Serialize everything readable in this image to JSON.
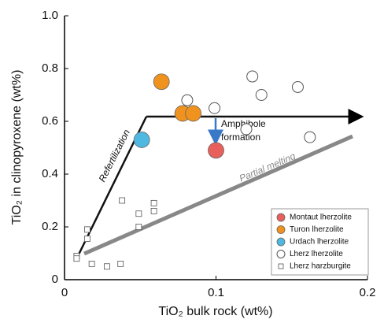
{
  "chart_data": {
    "type": "scatter",
    "x_label": "TiO₂ bulk rock (wt%)",
    "y_label": "TiO₂ in clinopyroxene (wt%)",
    "xlim": [
      0,
      0.2
    ],
    "xticks": [
      0,
      0.1,
      0.2
    ],
    "ylim": [
      0,
      1
    ],
    "yticks": [
      0,
      0.2,
      0.4,
      0.6,
      0.8,
      {
        "value": 1,
        "label": "1.0"
      }
    ],
    "legend_position": "lower right",
    "annotations": [
      "Refertilization",
      "Partial melting",
      "Amphibole",
      "formation"
    ],
    "series": [
      {
        "name": "Montaut lherzolite",
        "color": "#e8605c",
        "marker": "circle",
        "filled": true,
        "x": [
          0.1
        ],
        "values": [
          0.49
        ]
      },
      {
        "name": "Turon lherzolite",
        "color": "#f0921e",
        "marker": "circle",
        "filled": true,
        "x": [
          0.064,
          0.078,
          0.085
        ],
        "values": [
          0.75,
          0.63,
          0.63
        ]
      },
      {
        "name": "Urdach lherzolite",
        "color": "#4fb8e0",
        "marker": "circle",
        "filled": true,
        "x": [
          0.051
        ],
        "values": [
          0.53
        ]
      },
      {
        "name": "Lherz lherzolite",
        "color": "#555555",
        "marker": "circle",
        "filled": false,
        "x": [
          0.081,
          0.124,
          0.13,
          0.154,
          0.099,
          0.12,
          0.162
        ],
        "values": [
          0.68,
          0.77,
          0.7,
          0.73,
          0.65,
          0.57,
          0.54
        ]
      },
      {
        "name": "Lherz harzburgite",
        "color": "#555555",
        "marker": "square",
        "filled": false,
        "x": [
          0.008,
          0.008,
          0.015,
          0.015,
          0.018,
          0.028,
          0.037,
          0.038,
          0.049,
          0.049,
          0.059,
          0.059
        ],
        "values": [
          0.09,
          0.08,
          0.19,
          0.155,
          0.06,
          0.05,
          0.06,
          0.3,
          0.25,
          0.2,
          0.29,
          0.26
        ]
      }
    ]
  }
}
